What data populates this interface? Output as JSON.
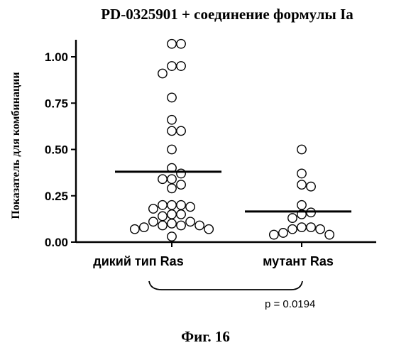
{
  "chart_data": {
    "type": "scatter",
    "title": "PD-0325901 + соединение формулы Ia",
    "ylabel": "Показатель для комбинации",
    "xlabel": "",
    "ylim": [
      0,
      1.1
    ],
    "yticks": [
      "0.00",
      "0.25",
      "0.50",
      "0.75",
      "1.00"
    ],
    "ytick_values": [
      0,
      0.25,
      0.5,
      0.75,
      1.0
    ],
    "categories": [
      "дикий тип Ras",
      "мутант Ras"
    ],
    "grid": false,
    "legend": "none",
    "series": [
      {
        "category": "дикий тип Ras",
        "median": 0.38,
        "points": [
          1.07,
          1.07,
          0.95,
          0.91,
          0.95,
          0.78,
          0.66,
          0.6,
          0.6,
          0.5,
          0.4,
          0.37,
          0.34,
          0.34,
          0.31,
          0.29,
          0.2,
          0.2,
          0.18,
          0.2,
          0.19,
          0.15,
          0.15,
          0.14,
          0.11,
          0.1,
          0.09,
          0.09,
          0.11,
          0.08,
          0.07,
          0.09,
          0.07,
          0.03
        ]
      },
      {
        "category": "мутант Ras",
        "median": 0.165,
        "points": [
          0.5,
          0.37,
          0.31,
          0.3,
          0.2,
          0.16,
          0.15,
          0.13,
          0.08,
          0.08,
          0.07,
          0.07,
          0.05,
          0.04,
          0.04
        ]
      }
    ],
    "annotation": "p = 0.0194"
  },
  "figure_caption": "Фиг. 16"
}
